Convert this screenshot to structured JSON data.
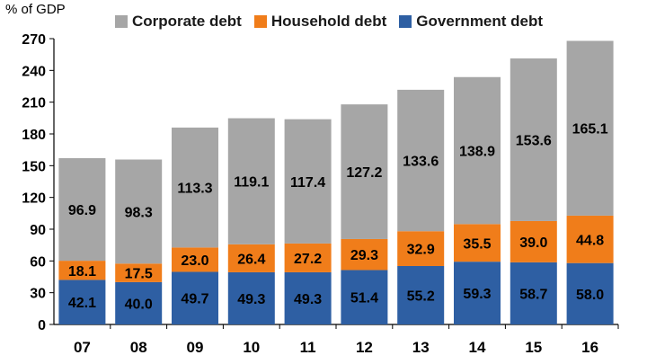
{
  "chart_data": {
    "type": "bar",
    "stacked": true,
    "ylabel": "% of GDP",
    "ylim": [
      0,
      270
    ],
    "yticks": [
      0,
      30,
      60,
      90,
      120,
      150,
      180,
      210,
      240,
      270
    ],
    "categories": [
      "07",
      "08",
      "09",
      "10",
      "11",
      "12",
      "13",
      "14",
      "15",
      "16"
    ],
    "series": [
      {
        "name": "Government debt",
        "color": "#2e5fa3",
        "values": [
          42.1,
          40.0,
          49.7,
          49.3,
          49.3,
          51.4,
          55.2,
          59.3,
          58.7,
          58.0
        ],
        "labels": [
          "42.1",
          "40.0",
          "49.7",
          "49.3",
          "49.3",
          "51.4",
          "55.2",
          "59.3",
          "58.7",
          "58.0"
        ]
      },
      {
        "name": "Household debt",
        "color": "#f07d1a",
        "values": [
          18.1,
          17.5,
          23.0,
          26.4,
          27.2,
          29.3,
          32.9,
          35.5,
          39.0,
          44.8
        ],
        "labels": [
          "18.1",
          "17.5",
          "23.0",
          "26.4",
          "27.2",
          "29.3",
          "32.9",
          "35.5",
          "39.0",
          "44.8"
        ]
      },
      {
        "name": "Corporate debt",
        "color": "#a6a6a6",
        "values": [
          96.9,
          98.3,
          113.3,
          119.1,
          117.4,
          127.2,
          133.6,
          138.9,
          153.6,
          165.1
        ],
        "labels": [
          "96.9",
          "98.3",
          "113.3",
          "119.1",
          "117.4",
          "127.2",
          "133.6",
          "138.9",
          "153.6",
          "165.1"
        ]
      }
    ],
    "legend_order": [
      "Corporate debt",
      "Household debt",
      "Government debt"
    ],
    "grid": false,
    "legend_position": "top"
  }
}
